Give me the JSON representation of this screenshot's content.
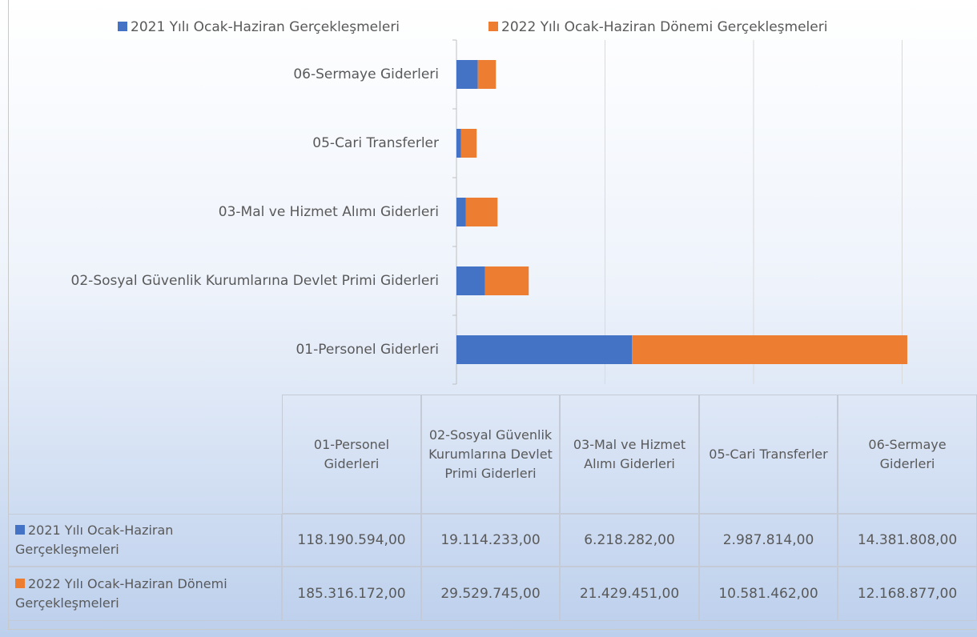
{
  "chart_data": {
    "type": "stacked-barh",
    "categories": [
      "01-Personel Giderleri",
      "02-Sosyal Güvenlik Kurumlarına Devlet Primi Giderleri",
      "03-Mal ve Hizmet Alımı Giderleri",
      "05-Cari Transferler",
      "06-Sermaye Giderleri"
    ],
    "series": [
      {
        "name": "2021 Yılı Ocak-Haziran Gerçekleşmeleri",
        "color": "#4472c4",
        "values": [
          118190594,
          19114233,
          6218282,
          2987814,
          14381808
        ],
        "value_labels": [
          "118.190.594,00",
          "19.114.233,00",
          "6.218.282,00",
          "2.987.814,00",
          "14.381.808,00"
        ]
      },
      {
        "name": "2022 Yılı Ocak-Haziran Dönemi Gerçekleşmeleri",
        "color": "#ed7d31",
        "values": [
          185316172,
          29529745,
          21429451,
          10581462,
          12168877
        ],
        "value_labels": [
          "185.316.172,00",
          "29.529.745,00",
          "21.429.451,00",
          "10.581.462,00",
          "12.168.877,00"
        ]
      }
    ],
    "xlim": [
      0,
      310000000
    ],
    "xticks": [
      0,
      100000000,
      200000000,
      300000000
    ],
    "grid": true,
    "legend": "top"
  }
}
